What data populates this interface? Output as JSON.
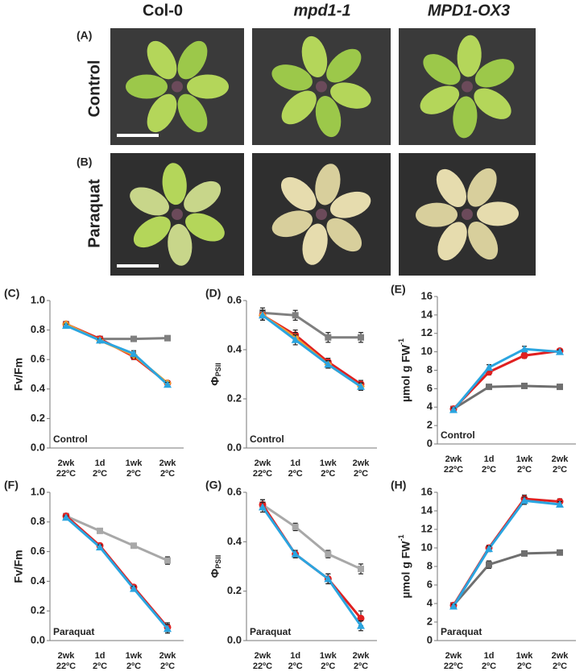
{
  "photos": {
    "columns": [
      "Col-0",
      "mpd1-1",
      "MPD1-OX3"
    ],
    "rows": [
      {
        "panel": "(A)",
        "label": "Control"
      },
      {
        "panel": "(B)",
        "label": "Paraquat"
      }
    ]
  },
  "chart_data": [
    {
      "type": "line",
      "panel": "(C)",
      "ylabel": "Fv/Fm",
      "annotation": "Control",
      "categories": [
        [
          "2wk",
          "22ºC"
        ],
        [
          "1d",
          "2ºC"
        ],
        [
          "1wk",
          "2ºC"
        ],
        [
          "2wk",
          "2ºC"
        ]
      ],
      "ylim": [
        0,
        1
      ],
      "yticks": [
        {
          "value": 0,
          "label": "0.0"
        },
        0.2,
        0.4,
        0.6,
        0.8,
        {
          "value": 1,
          "label": "1.0"
        }
      ],
      "series": [
        {
          "color": "#7f7f7f",
          "marker": "square",
          "values": [
            0.84,
            0.74,
            0.74,
            0.745
          ],
          "errors": [
            0.01,
            0.01,
            0.015,
            0.015
          ]
        },
        {
          "color": "#e02020",
          "marker": "circle",
          "values": [
            0.84,
            0.74,
            0.62,
            0.44
          ],
          "errors": [
            0.01,
            0.01,
            0.02,
            0.015
          ]
        },
        {
          "color": "#f0a030",
          "marker": "diamond",
          "values": [
            0.84,
            0.73,
            0.63,
            0.44
          ],
          "errors": [
            0.01,
            0.01,
            0.02,
            0.015
          ]
        },
        {
          "color": "#2aa5e0",
          "marker": "triangle",
          "values": [
            0.83,
            0.73,
            0.64,
            0.43
          ],
          "errors": [
            0.01,
            0.01,
            0.02,
            0.015
          ]
        }
      ]
    },
    {
      "type": "line",
      "panel": "(D)",
      "ylabel": "Φ",
      "ylabel_sub": "PSII",
      "annotation": "Control",
      "categories": [
        [
          "2wk",
          "22ºC"
        ],
        [
          "1d",
          "2ºC"
        ],
        [
          "1wk",
          "2ºC"
        ],
        [
          "2wk",
          "2ºC"
        ]
      ],
      "ylim": [
        0,
        0.6
      ],
      "yticks": [
        {
          "value": 0,
          "label": "0.0"
        },
        0.2,
        0.4,
        0.6
      ],
      "series": [
        {
          "color": "#7f7f7f",
          "marker": "square",
          "values": [
            0.55,
            0.54,
            0.45,
            0.45
          ],
          "errors": [
            0.02,
            0.02,
            0.02,
            0.02
          ]
        },
        {
          "color": "#e02020",
          "marker": "circle",
          "values": [
            0.54,
            0.46,
            0.35,
            0.26
          ],
          "errors": [
            0.02,
            0.02,
            0.015,
            0.015
          ]
        },
        {
          "color": "#f0a030",
          "marker": "diamond",
          "values": [
            0.54,
            0.45,
            0.34,
            0.25
          ],
          "errors": [
            0.02,
            0.02,
            0.015,
            0.015
          ]
        },
        {
          "color": "#2aa5e0",
          "marker": "triangle",
          "values": [
            0.54,
            0.44,
            0.34,
            0.25
          ],
          "errors": [
            0.02,
            0.02,
            0.015,
            0.015
          ]
        }
      ]
    },
    {
      "type": "line",
      "panel": "(E)",
      "ylabel": "µmol g FW",
      "ylabel_sup": "-1",
      "annotation": "Control",
      "categories": [
        [
          "2wk",
          "22ºC"
        ],
        [
          "1d",
          "2ºC"
        ],
        [
          "1wk",
          "2ºC"
        ],
        [
          "2wk",
          "2ºC"
        ]
      ],
      "ylim": [
        0,
        16
      ],
      "yticks": [
        0,
        2,
        4,
        6,
        8,
        10,
        12,
        14,
        16
      ],
      "series": [
        {
          "color": "#6f6f6f",
          "marker": "square",
          "values": [
            3.8,
            6.2,
            6.3,
            6.2
          ],
          "errors": [
            0.2,
            0.2,
            0.2,
            0.2
          ]
        },
        {
          "color": "#e02020",
          "marker": "circle",
          "values": [
            3.8,
            7.8,
            9.6,
            10.1
          ],
          "errors": [
            0.2,
            0.3,
            0.3,
            0.2
          ]
        },
        {
          "color": "#2aa5e0",
          "marker": "triangle",
          "values": [
            3.7,
            8.3,
            10.3,
            10
          ],
          "errors": [
            0.2,
            0.3,
            0.3,
            0.2
          ]
        }
      ]
    },
    {
      "type": "line",
      "panel": "(F)",
      "ylabel": "Fv/Fm",
      "annotation": "Paraquat",
      "categories": [
        [
          "2wk",
          "22ºC"
        ],
        [
          "1d",
          "2ºC"
        ],
        [
          "1wk",
          "2ºC"
        ],
        [
          "2wk",
          "2ºC"
        ]
      ],
      "ylim": [
        0,
        1
      ],
      "yticks": [
        {
          "value": 0,
          "label": "0.0"
        },
        0.2,
        0.4,
        0.6,
        0.8,
        {
          "value": 1,
          "label": "1.0"
        }
      ],
      "series": [
        {
          "color": "#a8a8a8",
          "marker": "square",
          "values": [
            0.84,
            0.74,
            0.64,
            0.54
          ],
          "errors": [
            0.01,
            0.01,
            0.015,
            0.025
          ]
        },
        {
          "color": "#e02020",
          "marker": "circle",
          "values": [
            0.84,
            0.64,
            0.36,
            0.09
          ],
          "errors": [
            0.01,
            0.015,
            0.015,
            0.03
          ]
        },
        {
          "color": "#2aa5e0",
          "marker": "triangle",
          "values": [
            0.83,
            0.63,
            0.35,
            0.08
          ],
          "errors": [
            0.01,
            0.015,
            0.015,
            0.03
          ]
        }
      ]
    },
    {
      "type": "line",
      "panel": "(G)",
      "ylabel": "Φ",
      "ylabel_sub": "PSII",
      "annotation": "Paraquat",
      "categories": [
        [
          "2wk",
          "22ºC"
        ],
        [
          "1d",
          "2ºC"
        ],
        [
          "1wk",
          "2ºC"
        ],
        [
          "2wk",
          "2ºC"
        ]
      ],
      "ylim": [
        0,
        0.6
      ],
      "yticks": [
        {
          "value": 0,
          "label": "0.0"
        },
        0.2,
        0.4,
        0.6
      ],
      "series": [
        {
          "color": "#a8a8a8",
          "marker": "square",
          "values": [
            0.55,
            0.46,
            0.35,
            0.29
          ],
          "errors": [
            0.02,
            0.015,
            0.015,
            0.02
          ]
        },
        {
          "color": "#e02020",
          "marker": "circle",
          "values": [
            0.55,
            0.35,
            0.25,
            0.09
          ],
          "errors": [
            0.02,
            0.015,
            0.02,
            0.03
          ]
        },
        {
          "color": "#2aa5e0",
          "marker": "triangle",
          "values": [
            0.54,
            0.35,
            0.25,
            0.06
          ],
          "errors": [
            0.02,
            0.015,
            0.02,
            0.02
          ]
        }
      ]
    },
    {
      "type": "line",
      "panel": "(H)",
      "ylabel": "µmol g FW",
      "ylabel_sup": "-1",
      "annotation": "Paraquat",
      "categories": [
        [
          "2wk",
          "22ºC"
        ],
        [
          "1d",
          "2ºC"
        ],
        [
          "1wk",
          "2ºC"
        ],
        [
          "2wk",
          "2ºC"
        ]
      ],
      "ylim": [
        0,
        16
      ],
      "yticks": [
        0,
        2,
        4,
        6,
        8,
        10,
        12,
        14,
        16
      ],
      "series": [
        {
          "color": "#6f6f6f",
          "marker": "square",
          "values": [
            3.8,
            8.2,
            9.4,
            9.5
          ],
          "errors": [
            0.2,
            0.4,
            0.2,
            0.2
          ]
        },
        {
          "color": "#e02020",
          "marker": "circle",
          "values": [
            3.8,
            10,
            15.3,
            15
          ],
          "errors": [
            0.2,
            0.3,
            0.4,
            0.3
          ]
        },
        {
          "color": "#2aa5e0",
          "marker": "triangle",
          "values": [
            3.7,
            9.9,
            15.1,
            14.7
          ],
          "errors": [
            0.2,
            0.3,
            0.4,
            0.3
          ]
        }
      ]
    }
  ]
}
